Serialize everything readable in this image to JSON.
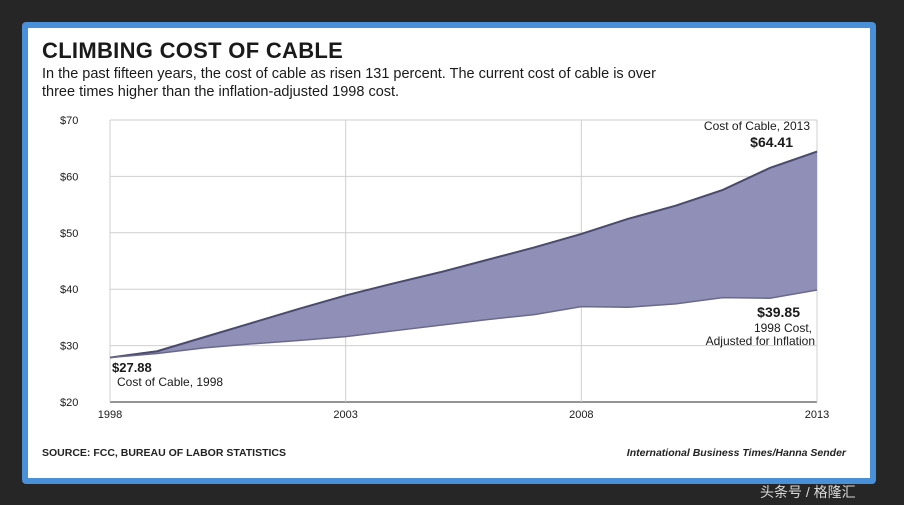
{
  "colors": {
    "fill": "#8f8fb7",
    "line": "#4a4a6e",
    "inflation_line": "#6a6a88",
    "frame": "#4a90d9"
  },
  "chart_data": {
    "type": "area",
    "title": "CLIMBING COST OF CABLE",
    "subtitle": "In the past fifteen years, the cost of cable as risen 131 percent. The current cost of cable is over three times higher than the inflation-adjusted 1998 cost.",
    "x": [
      1998,
      1999,
      2000,
      2001,
      2002,
      2003,
      2004,
      2005,
      2006,
      2007,
      2008,
      2009,
      2010,
      2011,
      2012,
      2013
    ],
    "series": [
      {
        "name": "Cost of Cable",
        "values": [
          27.88,
          29.0,
          31.5,
          34.0,
          36.5,
          38.9,
          41.0,
          43.0,
          45.2,
          47.4,
          49.8,
          52.5,
          54.8,
          57.6,
          61.5,
          64.41
        ]
      },
      {
        "name": "1998 Cost, Adjusted for Inflation",
        "values": [
          27.88,
          28.6,
          29.6,
          30.3,
          30.9,
          31.6,
          32.6,
          33.6,
          34.6,
          35.5,
          36.9,
          36.8,
          37.4,
          38.5,
          38.4,
          39.85
        ]
      }
    ],
    "ylim": [
      20,
      70
    ],
    "xlim": [
      1998,
      2013
    ],
    "y_ticks": [
      "$20",
      "$30",
      "$40",
      "$50",
      "$60",
      "$70"
    ],
    "y_tick_values": [
      20,
      30,
      40,
      50,
      60,
      70
    ],
    "x_ticks": [
      "1998",
      "2003",
      "2008",
      "2013"
    ],
    "x_tick_values": [
      1998,
      2003,
      2008,
      2013
    ],
    "annotations": {
      "start_value": "$27.88",
      "start_label": "Cost of Cable, 1998",
      "end_label": "Cost of Cable, 2013",
      "end_value": "$64.41",
      "infl_value": "$39.85",
      "infl_label_1": "1998 Cost,",
      "infl_label_2": "Adjusted for Inflation"
    },
    "grid": true,
    "source": "SOURCE: FCC, BUREAU OF LABOR STATISTICS",
    "credit": "International Business Times/Hanna Sender"
  },
  "watermark": "头条号 / 格隆汇"
}
